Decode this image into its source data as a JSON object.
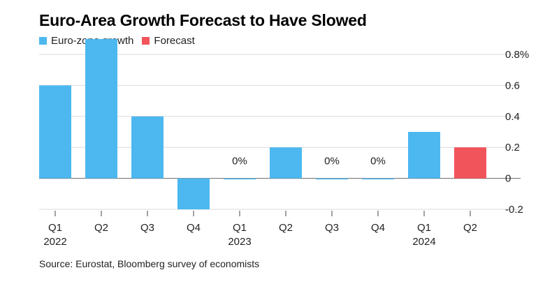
{
  "chart_data": {
    "type": "bar",
    "title": "Euro-Area Growth Forecast to Have Slowed",
    "source": "Source: Eurostat, Bloomberg survey of economists",
    "series": [
      {
        "name": "Euro-zone growth",
        "color": "#4db8f0"
      },
      {
        "name": "Forecast",
        "color": "#f2545b"
      }
    ],
    "categories": [
      {
        "quarter": "Q1",
        "year": "2022",
        "value": 0.6,
        "series": 0
      },
      {
        "quarter": "Q2",
        "year": "",
        "value": 0.9,
        "series": 0
      },
      {
        "quarter": "Q3",
        "year": "",
        "value": 0.4,
        "series": 0
      },
      {
        "quarter": "Q4",
        "year": "",
        "value": -0.2,
        "series": 0
      },
      {
        "quarter": "Q1",
        "year": "2023",
        "value": 0.0,
        "series": 0,
        "label": "0%"
      },
      {
        "quarter": "Q2",
        "year": "",
        "value": 0.2,
        "series": 0
      },
      {
        "quarter": "Q3",
        "year": "",
        "value": 0.0,
        "series": 0,
        "label": "0%"
      },
      {
        "quarter": "Q4",
        "year": "",
        "value": 0.0,
        "series": 0,
        "label": "0%"
      },
      {
        "quarter": "Q1",
        "year": "2024",
        "value": 0.3,
        "series": 0
      },
      {
        "quarter": "Q2",
        "year": "",
        "value": 0.2,
        "series": 1
      }
    ],
    "yticks": [
      {
        "value": 0.8,
        "label": "0.8%"
      },
      {
        "value": 0.6,
        "label": "0.6"
      },
      {
        "value": 0.4,
        "label": "0.4"
      },
      {
        "value": 0.2,
        "label": "0.2"
      },
      {
        "value": 0.0,
        "label": "0"
      },
      {
        "value": -0.2,
        "label": "-0.2"
      }
    ],
    "ylim": [
      -0.2,
      0.8
    ],
    "grid": true
  }
}
